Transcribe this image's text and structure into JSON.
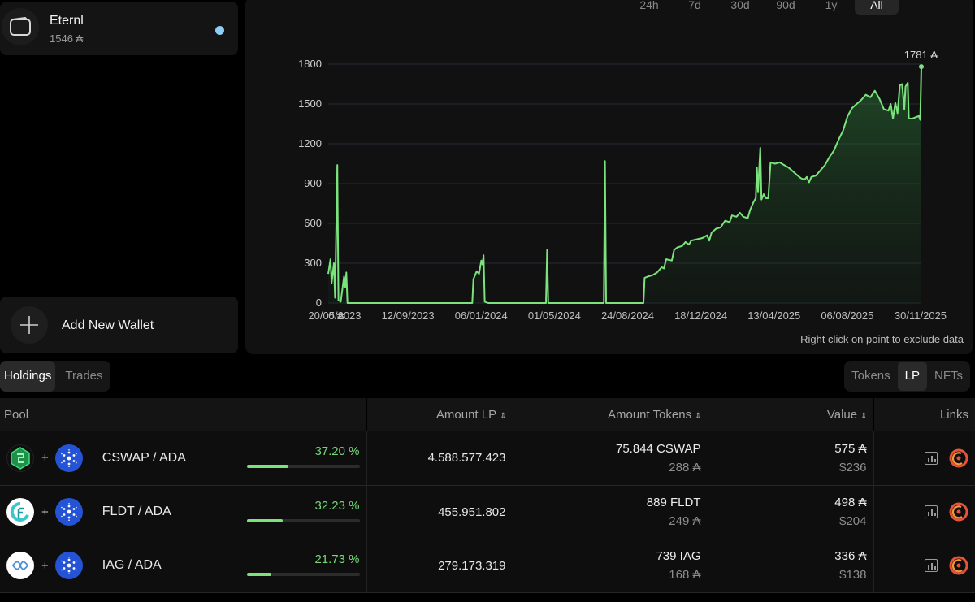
{
  "wallet": {
    "name": "Eternl",
    "balance": "1546 ₳"
  },
  "add_wallet": {
    "label": "Add New Wallet"
  },
  "range_tabs": [
    "24h",
    "7d",
    "30d",
    "90d",
    "1y",
    "All"
  ],
  "chart_note": "Right click on point to exclude data",
  "colors": {
    "accent_green": "#7be37c",
    "background": "#000000",
    "panel": "#111111",
    "status_dot": "#8fcdf6"
  },
  "chart_data": {
    "type": "area",
    "title": "",
    "ylim": [
      0,
      1800
    ],
    "yticks": [
      0,
      300,
      600,
      900,
      1200,
      1500,
      1800
    ],
    "xlabels": [
      "20/05/2023",
      "12/09/2023",
      "06/01/2024",
      "01/05/2024",
      "24/08/2024",
      "18/12/2024",
      "13/04/2025",
      "06/08/2025",
      "30/11/2025"
    ],
    "x_overlap_label": "0 ₳",
    "last_value_label": "1781 ₳",
    "series": [
      {
        "name": "Portfolio value (₳)",
        "points": [
          [
            0,
            220
          ],
          [
            2,
            330
          ],
          [
            3,
            150
          ],
          [
            5,
            300
          ],
          [
            6,
            40
          ],
          [
            8,
            1040
          ],
          [
            9,
            20
          ],
          [
            11,
            10
          ],
          [
            14,
            200
          ],
          [
            15,
            120
          ],
          [
            16,
            230
          ],
          [
            17,
            0
          ],
          [
            120,
            0
          ],
          [
            127,
            0
          ],
          [
            128,
            180
          ],
          [
            131,
            240
          ],
          [
            133,
            220
          ],
          [
            135,
            320
          ],
          [
            136,
            290
          ],
          [
            137,
            360
          ],
          [
            138,
            10
          ],
          [
            141,
            0
          ],
          [
            192,
            0
          ],
          [
            193,
            400
          ],
          [
            194,
            0
          ],
          [
            243,
            0
          ],
          [
            244,
            1070
          ],
          [
            245,
            0
          ],
          [
            278,
            0
          ],
          [
            279,
            190
          ],
          [
            282,
            200
          ],
          [
            286,
            210
          ],
          [
            290,
            230
          ],
          [
            294,
            270
          ],
          [
            296,
            260
          ],
          [
            298,
            330
          ],
          [
            303,
            320
          ],
          [
            305,
            400
          ],
          [
            308,
            420
          ],
          [
            312,
            430
          ],
          [
            315,
            460
          ],
          [
            318,
            440
          ],
          [
            320,
            470
          ],
          [
            325,
            480
          ],
          [
            330,
            490
          ],
          [
            334,
            510
          ],
          [
            336,
            470
          ],
          [
            338,
            530
          ],
          [
            342,
            560
          ],
          [
            346,
            570
          ],
          [
            350,
            620
          ],
          [
            354,
            610
          ],
          [
            356,
            660
          ],
          [
            360,
            650
          ],
          [
            363,
            680
          ],
          [
            366,
            650
          ],
          [
            370,
            640
          ],
          [
            372,
            700
          ],
          [
            375,
            760
          ],
          [
            377,
            790
          ],
          [
            378,
            1020
          ],
          [
            379,
            840
          ],
          [
            381,
            1170
          ],
          [
            382,
            780
          ],
          [
            384,
            820
          ],
          [
            386,
            790
          ],
          [
            388,
            790
          ],
          [
            390,
            1060
          ],
          [
            394,
            1050
          ],
          [
            398,
            1060
          ],
          [
            402,
            1040
          ],
          [
            406,
            1020
          ],
          [
            410,
            990
          ],
          [
            414,
            960
          ],
          [
            417,
            940
          ],
          [
            420,
            930
          ],
          [
            422,
            950
          ],
          [
            424,
            910
          ],
          [
            426,
            950
          ],
          [
            430,
            960
          ],
          [
            434,
            1000
          ],
          [
            438,
            1040
          ],
          [
            442,
            1100
          ],
          [
            446,
            1150
          ],
          [
            450,
            1230
          ],
          [
            454,
            1300
          ],
          [
            458,
            1410
          ],
          [
            462,
            1470
          ],
          [
            466,
            1500
          ],
          [
            470,
            1530
          ],
          [
            474,
            1570
          ],
          [
            478,
            1550
          ],
          [
            482,
            1600
          ],
          [
            486,
            1540
          ],
          [
            490,
            1460
          ],
          [
            494,
            1450
          ],
          [
            496,
            1500
          ],
          [
            498,
            1390
          ],
          [
            500,
            1510
          ],
          [
            502,
            1430
          ],
          [
            504,
            1640
          ],
          [
            506,
            1650
          ],
          [
            508,
            1460
          ],
          [
            509,
            1630
          ],
          [
            511,
            1660
          ],
          [
            512,
            1390
          ],
          [
            515,
            1390
          ],
          [
            518,
            1400
          ],
          [
            521,
            1410
          ],
          [
            522,
            1380
          ],
          [
            523,
            1781
          ]
        ]
      }
    ]
  },
  "main_tabs": [
    {
      "label": "Holdings",
      "active": true
    },
    {
      "label": "Trades",
      "active": false
    }
  ],
  "type_tabs": [
    {
      "label": "Tokens",
      "active": false
    },
    {
      "label": "LP",
      "active": true
    },
    {
      "label": "NFTs",
      "active": false
    }
  ],
  "table": {
    "headers": {
      "pool": "Pool",
      "share": "",
      "amount_lp": "Amount LP",
      "amount_tokens": "Amount Tokens",
      "value": "Value",
      "links": "Links"
    },
    "rows": [
      {
        "pair": "CSWAP / ADA",
        "token_icon": "cswap-icon",
        "share_pct": "37.20 %",
        "share_value": 37.2,
        "amount_lp": "4.588.577.423",
        "tokens_primary": "75.844 CSWAP",
        "tokens_ada": "288 ₳",
        "value_ada": "575 ₳",
        "value_usd": "$236"
      },
      {
        "pair": "FLDT / ADA",
        "token_icon": "fldt-icon",
        "share_pct": "32.23 %",
        "share_value": 32.23,
        "amount_lp": "455.951.802",
        "tokens_primary": "889 FLDT",
        "tokens_ada": "249 ₳",
        "value_ada": "498 ₳",
        "value_usd": "$204"
      },
      {
        "pair": "IAG / ADA",
        "token_icon": "iag-icon",
        "share_pct": "21.73 %",
        "share_value": 21.73,
        "amount_lp": "279.173.319",
        "tokens_primary": "739 IAG",
        "tokens_ada": "168 ₳",
        "value_ada": "336 ₳",
        "value_usd": "$138"
      }
    ]
  }
}
